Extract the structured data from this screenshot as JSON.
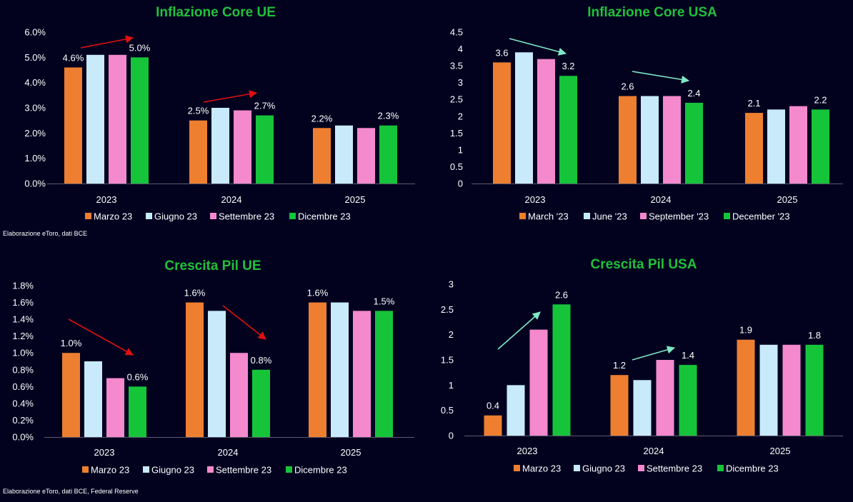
{
  "footnotes": {
    "top": "Elaborazione eToro, dati BCE",
    "bottom": "Elaborazione eToro, dati BCE, Federal Reserve"
  },
  "colors": {
    "background": "#02021f",
    "title": "#22c03a",
    "text": "#ffffff",
    "series": [
      "#ee7f30",
      "#c8eafb",
      "#f589cd",
      "#16c43a"
    ],
    "arrow_red": "#e01010",
    "arrow_mint": "#7fe8c6"
  },
  "chart_data": [
    {
      "type": "bar",
      "title": "Inflazione Core UE",
      "categories": [
        "2023",
        "2024",
        "2025"
      ],
      "series": [
        {
          "name": "Marzo 23",
          "values": [
            4.6,
            2.5,
            2.2
          ]
        },
        {
          "name": "Giugno 23",
          "values": [
            5.1,
            3.0,
            2.3
          ]
        },
        {
          "name": "Settembre 23",
          "values": [
            5.1,
            2.9,
            2.2
          ]
        },
        {
          "name": "Dicembre 23",
          "values": [
            5.0,
            2.7,
            2.3
          ]
        }
      ],
      "yticks": [
        "0.0%",
        "1.0%",
        "2.0%",
        "3.0%",
        "4.0%",
        "5.0%",
        "6.0%"
      ],
      "ylim": [
        0,
        6
      ],
      "data_labels": [
        {
          "series": 0,
          "category": 0,
          "text": "4.6%"
        },
        {
          "series": 3,
          "category": 0,
          "text": "5.0%"
        },
        {
          "series": 0,
          "category": 1,
          "text": "2.5%"
        },
        {
          "series": 3,
          "category": 1,
          "text": "2.7%"
        },
        {
          "series": 0,
          "category": 2,
          "text": "2.2%"
        },
        {
          "series": 3,
          "category": 2,
          "text": "2.3%"
        }
      ],
      "arrows": [
        {
          "color": "red",
          "category": 0,
          "direction": "up"
        },
        {
          "color": "red",
          "category": 1,
          "direction": "up"
        }
      ],
      "legend": "bottom",
      "grid": false
    },
    {
      "type": "bar",
      "title": "Inflazione Core USA",
      "categories": [
        "2023",
        "2024",
        "2025"
      ],
      "series": [
        {
          "name": "March '23",
          "values": [
            3.6,
            2.6,
            2.1
          ]
        },
        {
          "name": "June '23",
          "values": [
            3.9,
            2.6,
            2.2
          ]
        },
        {
          "name": "September '23",
          "values": [
            3.7,
            2.6,
            2.3
          ]
        },
        {
          "name": "December '23",
          "values": [
            3.2,
            2.4,
            2.2
          ]
        }
      ],
      "yticks": [
        "0",
        "0.5",
        "1",
        "1.5",
        "2",
        "2.5",
        "3",
        "3.5",
        "4",
        "4.5"
      ],
      "ylim": [
        0,
        4.5
      ],
      "data_labels": [
        {
          "series": 0,
          "category": 0,
          "text": "3.6"
        },
        {
          "series": 3,
          "category": 0,
          "text": "3.2"
        },
        {
          "series": 0,
          "category": 1,
          "text": "2.6"
        },
        {
          "series": 3,
          "category": 1,
          "text": "2.4"
        },
        {
          "series": 0,
          "category": 2,
          "text": "2.1"
        },
        {
          "series": 3,
          "category": 2,
          "text": "2.2"
        }
      ],
      "arrows": [
        {
          "color": "mint",
          "category": 0,
          "direction": "down"
        },
        {
          "color": "mint",
          "category": 1,
          "direction": "down"
        }
      ],
      "legend": "bottom",
      "grid": false
    },
    {
      "type": "bar",
      "title": "Crescita Pil UE",
      "categories": [
        "2023",
        "2024",
        "2025"
      ],
      "series": [
        {
          "name": "Marzo 23",
          "values": [
            1.0,
            1.6,
            1.6
          ]
        },
        {
          "name": "Giugno 23",
          "values": [
            0.9,
            1.5,
            1.6
          ]
        },
        {
          "name": "Settembre 23",
          "values": [
            0.7,
            1.0,
            1.5
          ]
        },
        {
          "name": "Dicembre 23",
          "values": [
            0.6,
            0.8,
            1.5
          ]
        }
      ],
      "yticks": [
        "0.0%",
        "0.2%",
        "0.4%",
        "0.6%",
        "0.8%",
        "1.0%",
        "1.2%",
        "1.4%",
        "1.6%",
        "1.8%"
      ],
      "ylim": [
        0,
        1.8
      ],
      "data_labels": [
        {
          "series": 0,
          "category": 0,
          "text": "1.0%"
        },
        {
          "series": 3,
          "category": 0,
          "text": "0.6%"
        },
        {
          "series": 0,
          "category": 1,
          "text": "1.6%"
        },
        {
          "series": 3,
          "category": 1,
          "text": "0.8%"
        },
        {
          "series": 0,
          "category": 2,
          "text": "1.6%"
        },
        {
          "series": 3,
          "category": 2,
          "text": "1.5%"
        }
      ],
      "arrows": [
        {
          "color": "red",
          "category": 0,
          "direction": "down"
        },
        {
          "color": "red",
          "category": 1,
          "direction": "down"
        }
      ],
      "legend": "bottom",
      "grid": false
    },
    {
      "type": "bar",
      "title": "Crescita Pil USA",
      "categories": [
        "2023",
        "2024",
        "2025"
      ],
      "series": [
        {
          "name": "Marzo 23",
          "values": [
            0.4,
            1.2,
            1.9
          ]
        },
        {
          "name": "Giugno 23",
          "values": [
            1.0,
            1.1,
            1.8
          ]
        },
        {
          "name": "Settembre 23",
          "values": [
            2.1,
            1.5,
            1.8
          ]
        },
        {
          "name": "Dicembre 23",
          "values": [
            2.6,
            1.4,
            1.8
          ]
        }
      ],
      "yticks": [
        "0",
        "0.5",
        "1",
        "1.5",
        "2",
        "2.5",
        "3"
      ],
      "ylim": [
        0,
        3
      ],
      "data_labels": [
        {
          "series": 0,
          "category": 0,
          "text": "0.4"
        },
        {
          "series": 3,
          "category": 0,
          "text": "2.6"
        },
        {
          "series": 0,
          "category": 1,
          "text": "1.2"
        },
        {
          "series": 3,
          "category": 1,
          "text": "1.4"
        },
        {
          "series": 0,
          "category": 2,
          "text": "1.9"
        },
        {
          "series": 3,
          "category": 2,
          "text": "1.8"
        }
      ],
      "arrows": [
        {
          "color": "mint",
          "category": 0,
          "direction": "up-steep"
        },
        {
          "color": "mint",
          "category": 1,
          "direction": "up"
        }
      ],
      "legend": "bottom",
      "grid": false
    }
  ]
}
